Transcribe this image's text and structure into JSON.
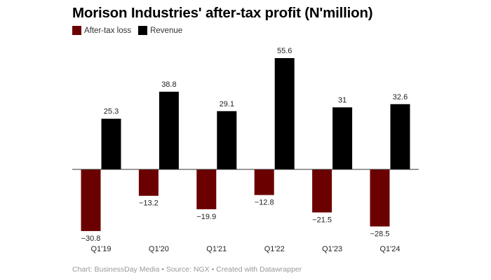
{
  "chart_data": {
    "type": "bar",
    "title": "Morison Industries' after-tax profit (N'million)",
    "categories": [
      "Q1'19",
      "Q1'20",
      "Q1'21",
      "Q1'22",
      "Q1'23",
      "Q1'24"
    ],
    "series": [
      {
        "name": "After-tax loss",
        "color": "#6b0000",
        "values": [
          -30.8,
          -13.2,
          -19.9,
          -12.8,
          -21.5,
          -28.5
        ],
        "labels": [
          "−30.8",
          "−13.2",
          "−19.9",
          "−12.8",
          "−21.5",
          "−28.5"
        ]
      },
      {
        "name": "Revenue",
        "color": "#000000",
        "values": [
          25.3,
          38.8,
          29.1,
          55.6,
          31,
          32.6
        ],
        "labels": [
          "25.3",
          "38.8",
          "29.1",
          "55.6",
          "31",
          "32.6"
        ]
      }
    ],
    "xlabel": "",
    "ylabel": "",
    "ylim": [
      -30.8,
      55.6
    ],
    "grid": false,
    "legend": "top-left"
  },
  "footer": "Chart: BusinessDay Media • Source: NGX • Created with Datawrapper"
}
